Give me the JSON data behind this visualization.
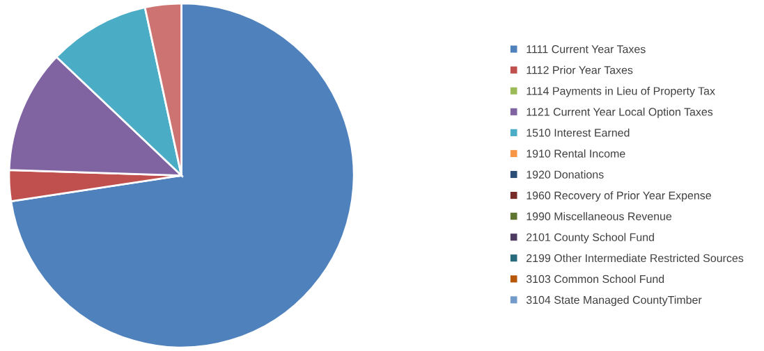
{
  "chart_data": {
    "type": "pie",
    "categories": [
      "1111 Current Year Taxes",
      "1112 Prior Year Taxes",
      "1114 Payments in Lieu of Property Tax",
      "1121 Current Year Local Option Taxes",
      "1510 Interest Earned",
      "1910 Rental Income",
      "1920 Donations",
      "1960 Recovery of Prior Year Expense",
      "1990 Miscellaneous Revenue",
      "2101 County School Fund",
      "2199 Other Intermediate Restricted Sources",
      "3103 Common School Fund",
      "3104 State Managed CountyTimber",
      null
    ],
    "values": [
      72.6,
      2.9,
      0,
      11.6,
      9.5,
      0,
      0,
      0,
      0,
      0,
      0,
      0,
      0,
      3.4
    ],
    "colors": [
      "#4f81bd",
      "#c0504d",
      "#9bbb59",
      "#8064a2",
      "#4bacc6",
      "#f79646",
      "#2c4d75",
      "#772c2a",
      "#5f7530",
      "#4d3b62",
      "#276a7c",
      "#b65708",
      "#729aca",
      "#cd7371"
    ],
    "legend": "right"
  }
}
